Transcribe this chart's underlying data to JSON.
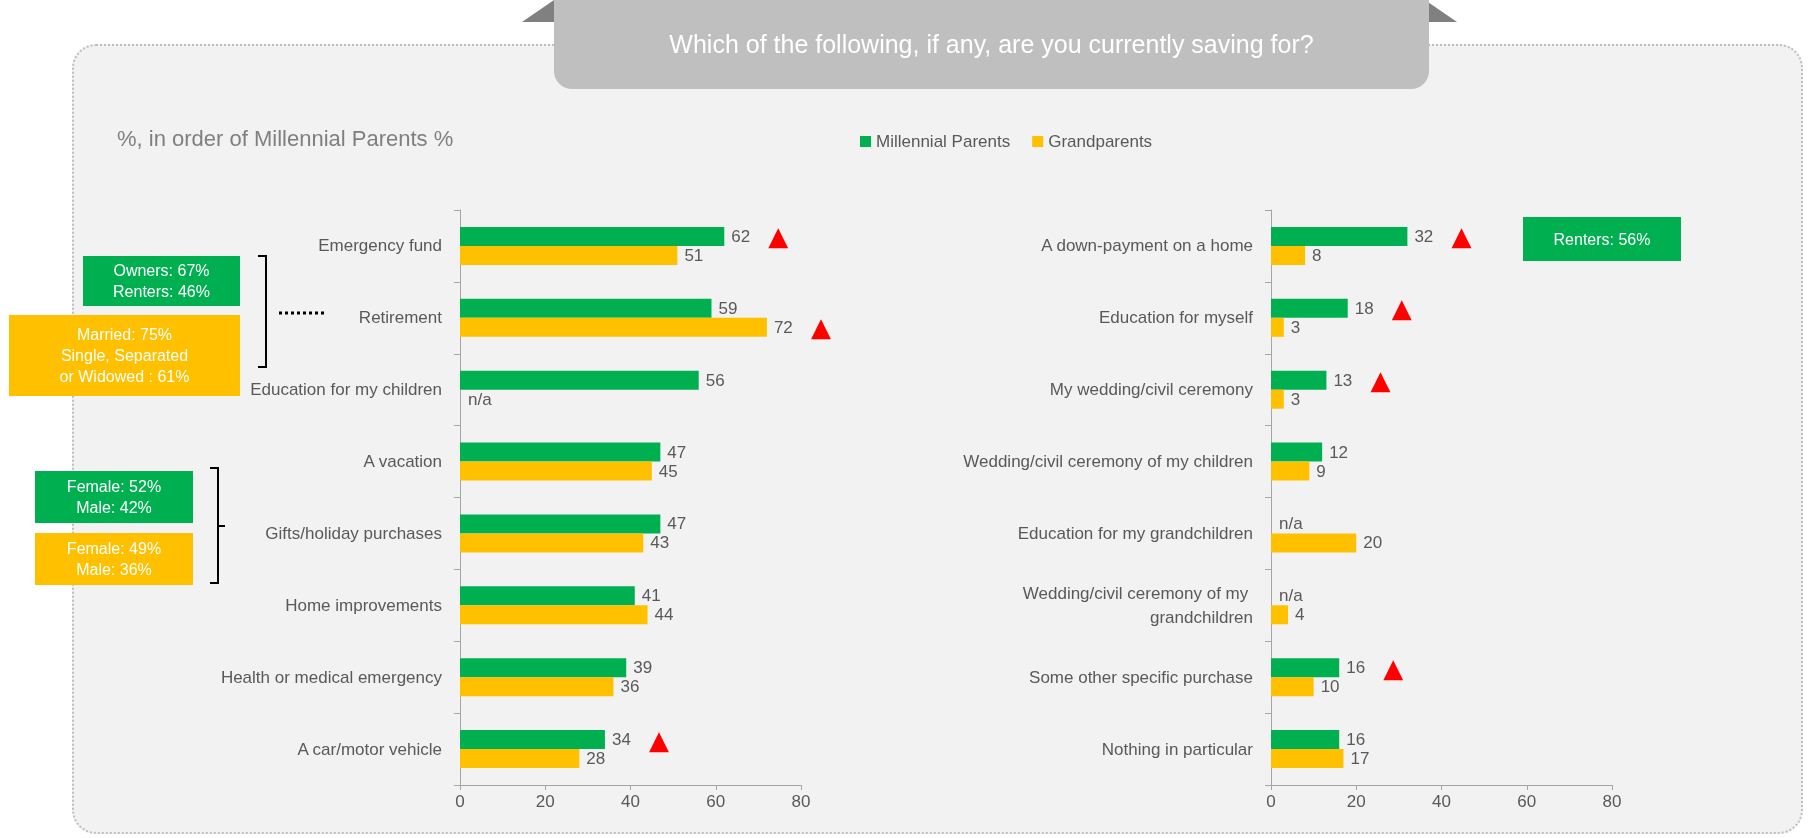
{
  "chart_data": [
    {
      "type": "bar",
      "orientation": "horizontal",
      "title": "Which of the following, if any, are you currently saving for?",
      "subtitle": "%, in order of Millennial Parents %",
      "categories": [
        "Emergency fund",
        "Retirement",
        "Education for my children",
        "A vacation",
        "Gifts/holiday purchases",
        "Home improvements",
        "Health or medical emergency",
        "A car/motor vehicle"
      ],
      "series": [
        {
          "color": "#00b050",
          "values": [
            62,
            59,
            56,
            47,
            47,
            41,
            39,
            34
          ],
          "value_labels": [
            "62",
            "59",
            "56",
            "47",
            "47",
            "41",
            "39",
            "34"
          ]
        },
        {
          "color": "#ffc000",
          "values": [
            51,
            72,
            null,
            45,
            43,
            44,
            36,
            28
          ],
          "value_labels": [
            "51",
            "72",
            "n/a",
            "45",
            "43",
            "44",
            "36",
            "28"
          ]
        }
      ],
      "xlim": [
        0,
        80
      ],
      "xticks": [
        0,
        20,
        40,
        60,
        80
      ],
      "grid": false,
      "annotations": [
        "Owners: 67%\nRenters: 46%",
        "Married: 75%\nSingle, Separated\nor Widowed : 61%",
        "Female: 52%\nMale: 42%",
        "Female: 49%\nMale: 36%",
        {
          "text": "▲",
          "x": 62,
          "y": "Emergency fund"
        },
        {
          "text": "▲",
          "x": 72,
          "y": "Retirement"
        },
        {
          "text": "▲",
          "x": 34,
          "y": "A car/motor vehicle"
        }
      ]
    },
    {
      "type": "bar",
      "orientation": "horizontal",
      "categories": [
        "A down-payment on a home",
        "Education for myself",
        "My wedding/civil ceremony",
        "Wedding/civil ceremony of my children",
        "Education for my grandchildren",
        "Wedding/civil ceremony of my grandchildren",
        "Some other specific purchase",
        "Nothing in particular"
      ],
      "series": [
        {
          "name": "Millennial Parents",
          "color": "#00b050",
          "values": [
            32,
            18,
            13,
            12,
            null,
            null,
            16,
            16
          ],
          "value_labels": [
            "32",
            "18",
            "13",
            "12",
            "n/a",
            "n/a",
            "16",
            "16"
          ]
        },
        {
          "name": "Grandparents",
          "color": "#ffc000",
          "values": [
            8,
            3,
            3,
            9,
            20,
            4,
            10,
            17
          ],
          "value_labels": [
            "8",
            "3",
            "3",
            "9",
            "20",
            "4",
            "10",
            "17"
          ]
        }
      ],
      "xlim": [
        0,
        80
      ],
      "xticks": [
        0,
        20,
        40,
        60,
        80
      ],
      "grid": false,
      "legend": "top",
      "annotations": [
        "Renters: 56%",
        {
          "text": "▲",
          "x": 32,
          "y": "A down-payment on a home"
        },
        {
          "text": "▲",
          "x": 18,
          "y": "Education for myself"
        },
        {
          "text": "▲",
          "x": 13,
          "y": "My wedding/civil ceremony"
        },
        {
          "text": "▲",
          "x": 16,
          "y": "Some other specific purchase"
        }
      ]
    }
  ]
}
